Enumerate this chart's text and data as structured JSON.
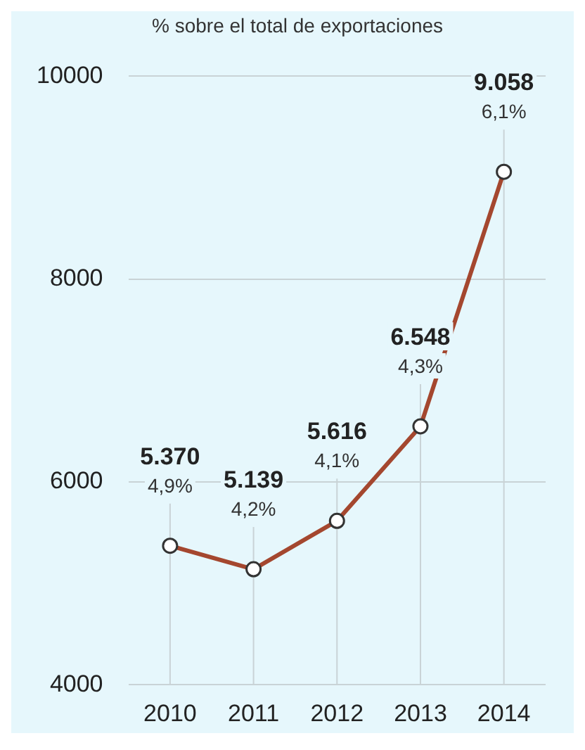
{
  "chart_data": {
    "type": "line",
    "subtitle": "% sobre el total de exportaciones",
    "categories": [
      "2010",
      "2011",
      "2012",
      "2013",
      "2014"
    ],
    "series": [
      {
        "color": "#a4472f",
        "values": [
          5370,
          5139,
          5616,
          6548,
          9058
        ],
        "value_labels": [
          "5.370",
          "5.139",
          "5.616",
          "6.548",
          "9.058"
        ]
      }
    ],
    "annotations": [
      {
        "text": "4,9%",
        "x": "2010",
        "y": 5370
      },
      {
        "text": "4,2%",
        "x": "2011",
        "y": 5139
      },
      {
        "text": "4,1%",
        "x": "2012",
        "y": 5616
      },
      {
        "text": "4,3%",
        "x": "2013",
        "y": 6548
      },
      {
        "text": "6,1%",
        "x": "2014",
        "y": 9058
      }
    ],
    "ylim": [
      4000,
      10000
    ],
    "yticks": [
      4000,
      6000,
      8000,
      10000
    ],
    "grid": true,
    "marker": "circle",
    "line_style": "solid",
    "legend": false
  }
}
